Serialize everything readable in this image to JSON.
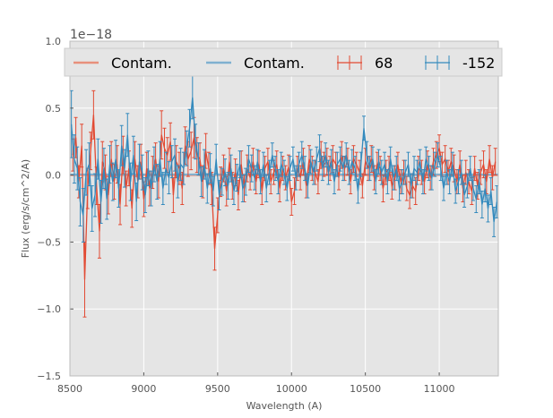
{
  "chart_data": {
    "type": "line",
    "title": "",
    "xlabel": "Wavelength (A)",
    "ylabel": "Flux (erg/s/cm^2/A)",
    "y_offset_label": "1e−18",
    "xlim": [
      8500,
      11400
    ],
    "ylim": [
      -1.5,
      1.0
    ],
    "x_ticks": [
      8500,
      9000,
      9500,
      10000,
      10500,
      11000
    ],
    "x_tick_labels": [
      "8500",
      "9000",
      "9500",
      "10000",
      "10500",
      "11000"
    ],
    "y_ticks": [
      -1.5,
      -1.0,
      -0.5,
      0.0,
      0.5,
      1.0
    ],
    "y_tick_labels": [
      "−1.5",
      "−1.0",
      "−0.5",
      "0.0",
      "0.5",
      "1.0"
    ],
    "grid": true,
    "legend": {
      "placement": "top",
      "entries": [
        {
          "label": "Contam.",
          "kind": "line",
          "color": "#e8907c"
        },
        {
          "label": "Contam.",
          "kind": "line",
          "color": "#7fb0d0"
        },
        {
          "label": "68",
          "kind": "errorbar",
          "color": "#e24a33"
        },
        {
          "label": "-152",
          "kind": "errorbar",
          "color": "#348abd"
        }
      ]
    },
    "series": [
      {
        "name": "Contam.",
        "kind": "contam",
        "color": "#e8907c",
        "x": [
          8500,
          11400
        ],
        "y": [
          0.0,
          0.0
        ]
      },
      {
        "name": "Contam.",
        "kind": "contam",
        "color": "#7fb0d0",
        "x": [
          8500,
          11400
        ],
        "y": [
          0.005,
          0.005
        ]
      },
      {
        "name": "68",
        "kind": "errorbar",
        "color": "#e24a33",
        "x": [
          8520,
          8540,
          8560,
          8580,
          8600,
          8620,
          8640,
          8660,
          8680,
          8700,
          8720,
          8740,
          8760,
          8780,
          8800,
          8820,
          8840,
          8860,
          8880,
          8900,
          8920,
          8940,
          8960,
          8980,
          9000,
          9020,
          9040,
          9060,
          9080,
          9100,
          9120,
          9140,
          9160,
          9180,
          9200,
          9220,
          9240,
          9260,
          9280,
          9300,
          9320,
          9340,
          9360,
          9380,
          9400,
          9420,
          9440,
          9460,
          9480,
          9500,
          9520,
          9540,
          9560,
          9580,
          9600,
          9620,
          9640,
          9660,
          9680,
          9700,
          9720,
          9740,
          9760,
          9780,
          9800,
          9820,
          9840,
          9860,
          9880,
          9900,
          9920,
          9940,
          9960,
          9980,
          10000,
          10020,
          10040,
          10060,
          10080,
          10100,
          10120,
          10140,
          10160,
          10180,
          10200,
          10220,
          10240,
          10260,
          10280,
          10300,
          10320,
          10340,
          10360,
          10380,
          10400,
          10420,
          10440,
          10460,
          10480,
          10500,
          10520,
          10540,
          10560,
          10580,
          10600,
          10620,
          10640,
          10660,
          10680,
          10700,
          10720,
          10740,
          10760,
          10780,
          10800,
          10820,
          10840,
          10860,
          10880,
          10900,
          10920,
          10940,
          10960,
          10980,
          11000,
          11020,
          11040,
          11060,
          11080,
          11100,
          11120,
          11140,
          11160,
          11180,
          11200,
          11220,
          11240,
          11260,
          11280,
          11300,
          11320,
          11340,
          11360,
          11380
        ],
        "y": [
          0.15,
          0.28,
          -0.05,
          0.22,
          -0.78,
          -0.1,
          0.18,
          0.45,
          -0.08,
          -0.42,
          0.1,
          0.02,
          -0.15,
          0.12,
          -0.05,
          0.08,
          -0.22,
          0.15,
          -0.1,
          0.05,
          -0.25,
          0.12,
          -0.05,
          0.1,
          -0.18,
          0.05,
          -0.1,
          0.02,
          0.12,
          -0.05,
          0.3,
          0.2,
          0.15,
          0.25,
          -0.15,
          0.1,
          0.05,
          -0.1,
          0.22,
          0.12,
          0.18,
          0.28,
          0.15,
          0.12,
          -0.05,
          0.18,
          0.05,
          -0.1,
          -0.55,
          -0.3,
          -0.05,
          0.05,
          -0.12,
          0.1,
          -0.08,
          0.02,
          -0.15,
          0.08,
          -0.1,
          0.05,
          -0.02,
          0.1,
          -0.05,
          0.08,
          -0.12,
          0.05,
          0.1,
          -0.05,
          0.02,
          0.08,
          -0.1,
          0.05,
          -0.02,
          0.06,
          -0.2,
          -0.12,
          0.05,
          -0.02,
          0.1,
          -0.08,
          0.12,
          0.05,
          0.02,
          -0.05,
          0.15,
          0.08,
          0.1,
          0.05,
          0.12,
          0.08,
          -0.02,
          0.15,
          0.05,
          0.1,
          -0.05,
          0.12,
          0.08,
          0.02,
          -0.08,
          0.1,
          0.05,
          0.12,
          -0.02,
          0.08,
          0.05,
          -0.1,
          0.02,
          0.05,
          -0.08,
          -0.02,
          0.08,
          -0.05,
          0.02,
          -0.1,
          -0.15,
          -0.08,
          -0.12,
          0.05,
          0.02,
          -0.05,
          0.08,
          -0.02,
          0.1,
          0.15,
          0.2,
          0.08,
          0.12,
          0.02,
          0.1,
          0.05,
          -0.05,
          0.08,
          -0.1,
          0.02,
          -0.05,
          -0.12,
          0.05,
          -0.08,
          0.02,
          0.08,
          -0.05,
          0.12,
          -0.02,
          0.1
        ],
        "err": [
          0.12,
          0.15,
          0.12,
          0.16,
          0.28,
          0.15,
          0.14,
          0.18,
          0.14,
          0.2,
          0.15,
          0.13,
          0.14,
          0.13,
          0.13,
          0.14,
          0.15,
          0.14,
          0.13,
          0.13,
          0.14,
          0.13,
          0.12,
          0.13,
          0.13,
          0.12,
          0.13,
          0.12,
          0.12,
          0.12,
          0.18,
          0.15,
          0.13,
          0.14,
          0.13,
          0.12,
          0.12,
          0.12,
          0.14,
          0.13,
          0.14,
          0.15,
          0.13,
          0.12,
          0.12,
          0.13,
          0.12,
          0.12,
          0.16,
          0.13,
          0.11,
          0.1,
          0.11,
          0.1,
          0.1,
          0.1,
          0.11,
          0.1,
          0.1,
          0.1,
          0.09,
          0.1,
          0.09,
          0.1,
          0.1,
          0.09,
          0.1,
          0.09,
          0.09,
          0.1,
          0.1,
          0.09,
          0.09,
          0.09,
          0.1,
          0.1,
          0.09,
          0.09,
          0.1,
          0.09,
          0.1,
          0.09,
          0.09,
          0.09,
          0.1,
          0.09,
          0.1,
          0.09,
          0.1,
          0.09,
          0.09,
          0.1,
          0.09,
          0.1,
          0.09,
          0.1,
          0.09,
          0.09,
          0.09,
          0.1,
          0.09,
          0.1,
          0.09,
          0.09,
          0.09,
          0.1,
          0.09,
          0.09,
          0.1,
          0.09,
          0.09,
          0.09,
          0.09,
          0.09,
          0.1,
          0.09,
          0.1,
          0.09,
          0.09,
          0.09,
          0.1,
          0.09,
          0.1,
          0.1,
          0.1,
          0.09,
          0.1,
          0.09,
          0.1,
          0.1,
          0.09,
          0.1,
          0.1,
          0.09,
          0.09,
          0.1,
          0.09,
          0.1,
          0.09,
          0.1,
          0.09,
          0.1,
          0.09,
          0.1
        ]
      },
      {
        "name": "-152",
        "kind": "errorbar",
        "color": "#348abd",
        "x": [
          8510,
          8530,
          8550,
          8570,
          8590,
          8610,
          8630,
          8650,
          8670,
          8690,
          8710,
          8730,
          8750,
          8770,
          8790,
          8810,
          8830,
          8850,
          8870,
          8890,
          8910,
          8930,
          8950,
          8970,
          8990,
          9010,
          9030,
          9050,
          9070,
          9090,
          9110,
          9130,
          9150,
          9170,
          9190,
          9210,
          9230,
          9250,
          9270,
          9290,
          9310,
          9330,
          9350,
          9370,
          9390,
          9410,
          9430,
          9450,
          9470,
          9490,
          9510,
          9530,
          9550,
          9570,
          9590,
          9610,
          9630,
          9650,
          9670,
          9690,
          9710,
          9730,
          9750,
          9770,
          9790,
          9810,
          9830,
          9850,
          9870,
          9890,
          9910,
          9930,
          9950,
          9970,
          9990,
          10010,
          10030,
          10050,
          10070,
          10090,
          10110,
          10130,
          10150,
          10170,
          10190,
          10210,
          10230,
          10250,
          10270,
          10290,
          10310,
          10330,
          10350,
          10370,
          10390,
          10410,
          10430,
          10450,
          10470,
          10490,
          10510,
          10530,
          10550,
          10570,
          10590,
          10610,
          10630,
          10650,
          10670,
          10690,
          10710,
          10730,
          10750,
          10770,
          10790,
          10810,
          10830,
          10850,
          10870,
          10890,
          10910,
          10930,
          10950,
          10970,
          10990,
          11010,
          11030,
          11050,
          11070,
          11090,
          11110,
          11130,
          11150,
          11170,
          11190,
          11210,
          11230,
          11250,
          11270,
          11290,
          11310,
          11330,
          11350,
          11370,
          11390
        ],
        "y": [
          0.38,
          0.12,
          0.05,
          -0.2,
          -0.3,
          0.02,
          0.08,
          -0.25,
          -0.15,
          0.12,
          -0.2,
          0.05,
          -0.18,
          0.08,
          -0.05,
          0.12,
          -0.1,
          0.22,
          0.05,
          0.3,
          -0.05,
          0.15,
          -0.2,
          0.1,
          0.02,
          -0.15,
          0.05,
          -0.1,
          0.08,
          -0.05,
          0.12,
          -0.1,
          0.05,
          -0.02,
          0.1,
          0.15,
          -0.05,
          0.08,
          0.05,
          0.2,
          0.35,
          0.58,
          0.25,
          0.12,
          -0.05,
          0.08,
          -0.1,
          0.05,
          -0.12,
          0.12,
          -0.15,
          -0.05,
          0.02,
          -0.08,
          0.05,
          -0.12,
          -0.02,
          0.08,
          -0.1,
          -0.05,
          0.12,
          0.05,
          -0.02,
          0.1,
          -0.05,
          0.08,
          -0.1,
          0.02,
          0.15,
          0.05,
          -0.05,
          0.08,
          0.02,
          -0.1,
          0.05,
          0.12,
          -0.02,
          0.08,
          0.15,
          0.05,
          -0.08,
          0.1,
          0.02,
          0.12,
          0.2,
          0.05,
          0.15,
          0.02,
          0.1,
          -0.05,
          0.08,
          0.12,
          0.05,
          0.15,
          0.02,
          0.1,
          0.05,
          -0.12,
          0.08,
          0.35,
          0.15,
          0.05,
          0.12,
          -0.05,
          0.1,
          0.02,
          0.08,
          -0.05,
          0.12,
          -0.02,
          0.05,
          -0.1,
          -0.05,
          0.02,
          0.08,
          -0.08,
          0.05,
          0.02,
          0.1,
          -0.05,
          0.12,
          0.05,
          -0.02,
          0.08,
          0.15,
          0.05,
          -0.1,
          0.02,
          -0.05,
          0.08,
          -0.12,
          -0.05,
          0.02,
          -0.15,
          -0.08,
          0.05,
          -0.1,
          -0.18,
          -0.05,
          -0.22,
          -0.1,
          -0.25,
          -0.12,
          -0.35,
          -0.2
        ],
        "err": [
          0.25,
          0.18,
          0.16,
          0.18,
          0.2,
          0.17,
          0.16,
          0.17,
          0.16,
          0.15,
          0.16,
          0.15,
          0.15,
          0.14,
          0.14,
          0.14,
          0.14,
          0.15,
          0.14,
          0.16,
          0.14,
          0.14,
          0.14,
          0.13,
          0.13,
          0.13,
          0.13,
          0.13,
          0.13,
          0.13,
          0.13,
          0.12,
          0.12,
          0.12,
          0.12,
          0.12,
          0.12,
          0.12,
          0.12,
          0.13,
          0.14,
          0.16,
          0.13,
          0.12,
          0.11,
          0.11,
          0.11,
          0.11,
          0.11,
          0.11,
          0.11,
          0.1,
          0.1,
          0.1,
          0.1,
          0.1,
          0.1,
          0.1,
          0.1,
          0.1,
          0.1,
          0.1,
          0.09,
          0.09,
          0.09,
          0.09,
          0.1,
          0.09,
          0.09,
          0.09,
          0.09,
          0.09,
          0.09,
          0.09,
          0.09,
          0.09,
          0.09,
          0.09,
          0.1,
          0.09,
          0.09,
          0.09,
          0.09,
          0.09,
          0.1,
          0.09,
          0.09,
          0.09,
          0.09,
          0.09,
          0.09,
          0.09,
          0.09,
          0.09,
          0.09,
          0.09,
          0.09,
          0.09,
          0.09,
          0.09,
          0.1,
          0.09,
          0.09,
          0.09,
          0.09,
          0.09,
          0.09,
          0.09,
          0.09,
          0.09,
          0.09,
          0.09,
          0.09,
          0.09,
          0.09,
          0.09,
          0.09,
          0.09,
          0.09,
          0.09,
          0.09,
          0.09,
          0.09,
          0.09,
          0.09,
          0.09,
          0.09,
          0.09,
          0.09,
          0.09,
          0.09,
          0.09,
          0.09,
          0.09,
          0.09,
          0.09,
          0.09,
          0.1,
          0.09,
          0.1,
          0.1,
          0.1,
          0.1,
          0.11,
          0.12
        ]
      }
    ]
  }
}
